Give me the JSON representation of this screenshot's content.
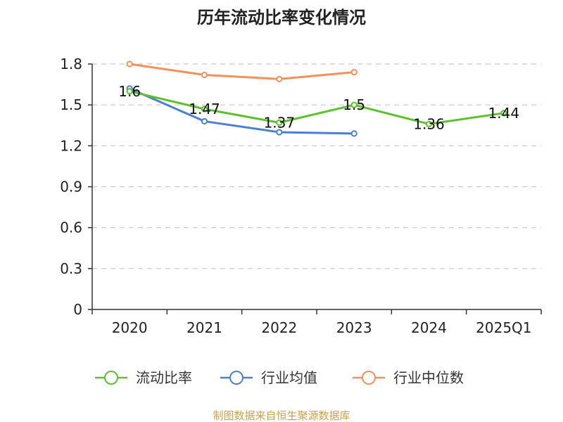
{
  "chart_data": {
    "type": "line",
    "title": "历年流动比率变化情况",
    "categories": [
      "2020",
      "2021",
      "2022",
      "2023",
      "2024",
      "2025Q1"
    ],
    "ylim": [
      0,
      1.8
    ],
    "yticks": [
      "0",
      "0.3",
      "0.6",
      "0.9",
      "1.2",
      "1.5",
      "1.8"
    ],
    "grid": true,
    "legend_position": "bottom",
    "series": [
      {
        "name": "流动比率",
        "color": "#5cc12a",
        "values": [
          1.6,
          1.47,
          1.37,
          1.5,
          1.36,
          1.44
        ],
        "labels": [
          "1.6",
          "1.47",
          "1.37",
          "1.5",
          "1.36",
          "1.44"
        ]
      },
      {
        "name": "行业均值",
        "color": "#4a7fd6",
        "values": [
          1.62,
          1.38,
          1.3,
          1.29,
          null,
          null
        ]
      },
      {
        "name": "行业中位数",
        "color": "#f4905a",
        "values": [
          1.8,
          1.72,
          1.69,
          1.74,
          null,
          null
        ]
      }
    ]
  },
  "footer": "制图数据来自恒生聚源数据库"
}
